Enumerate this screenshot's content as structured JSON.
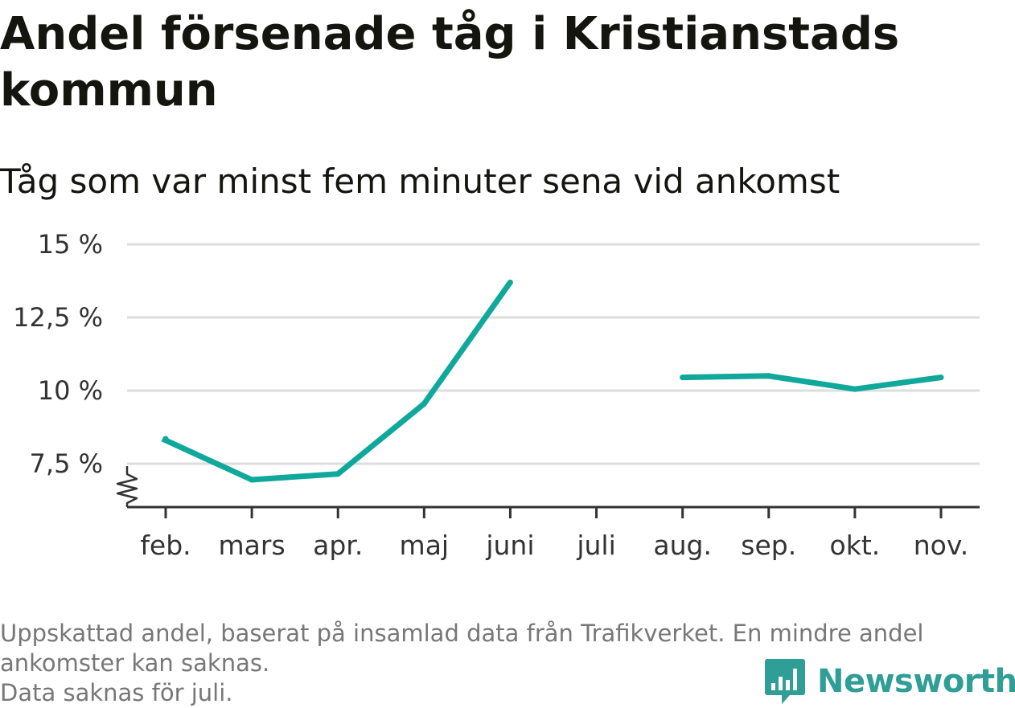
{
  "title": "Andel försenade tåg i Kristianstads kommun",
  "subtitle": "Tåg som var minst fem minuter sena vid ankomst",
  "footnote": {
    "line1": "Uppskattad andel, baserat på insamlad data från Trafikverket. En mindre andel",
    "line2": "ankomster kan saknas.",
    "line3": "Data saknas för juli."
  },
  "brand": {
    "name": "Newsworthy",
    "logo_icon": "newsworthy-logo-icon"
  },
  "colors": {
    "line": "#10a89b",
    "grid": "#dddddd",
    "axis": "#333333",
    "brand": "#2e9e96"
  },
  "chart_data": {
    "type": "line",
    "categories": [
      "feb.",
      "mars",
      "apr.",
      "maj",
      "juni",
      "juli",
      "aug.",
      "sep.",
      "okt.",
      "nov."
    ],
    "series": [
      {
        "values": [
          8.35,
          6.95,
          7.15,
          9.55,
          13.7,
          null,
          10.45,
          10.5,
          10.05,
          10.45
        ]
      }
    ],
    "y_ticks": [
      {
        "value": 7.5,
        "label": "7,5 %"
      },
      {
        "value": 10,
        "label": "10 %"
      },
      {
        "value": 12.5,
        "label": "12,5 %"
      },
      {
        "value": 15,
        "label": "15 %"
      }
    ],
    "ylim": [
      6,
      15
    ],
    "y_axis_break": true,
    "grid": true,
    "legend": "none"
  }
}
